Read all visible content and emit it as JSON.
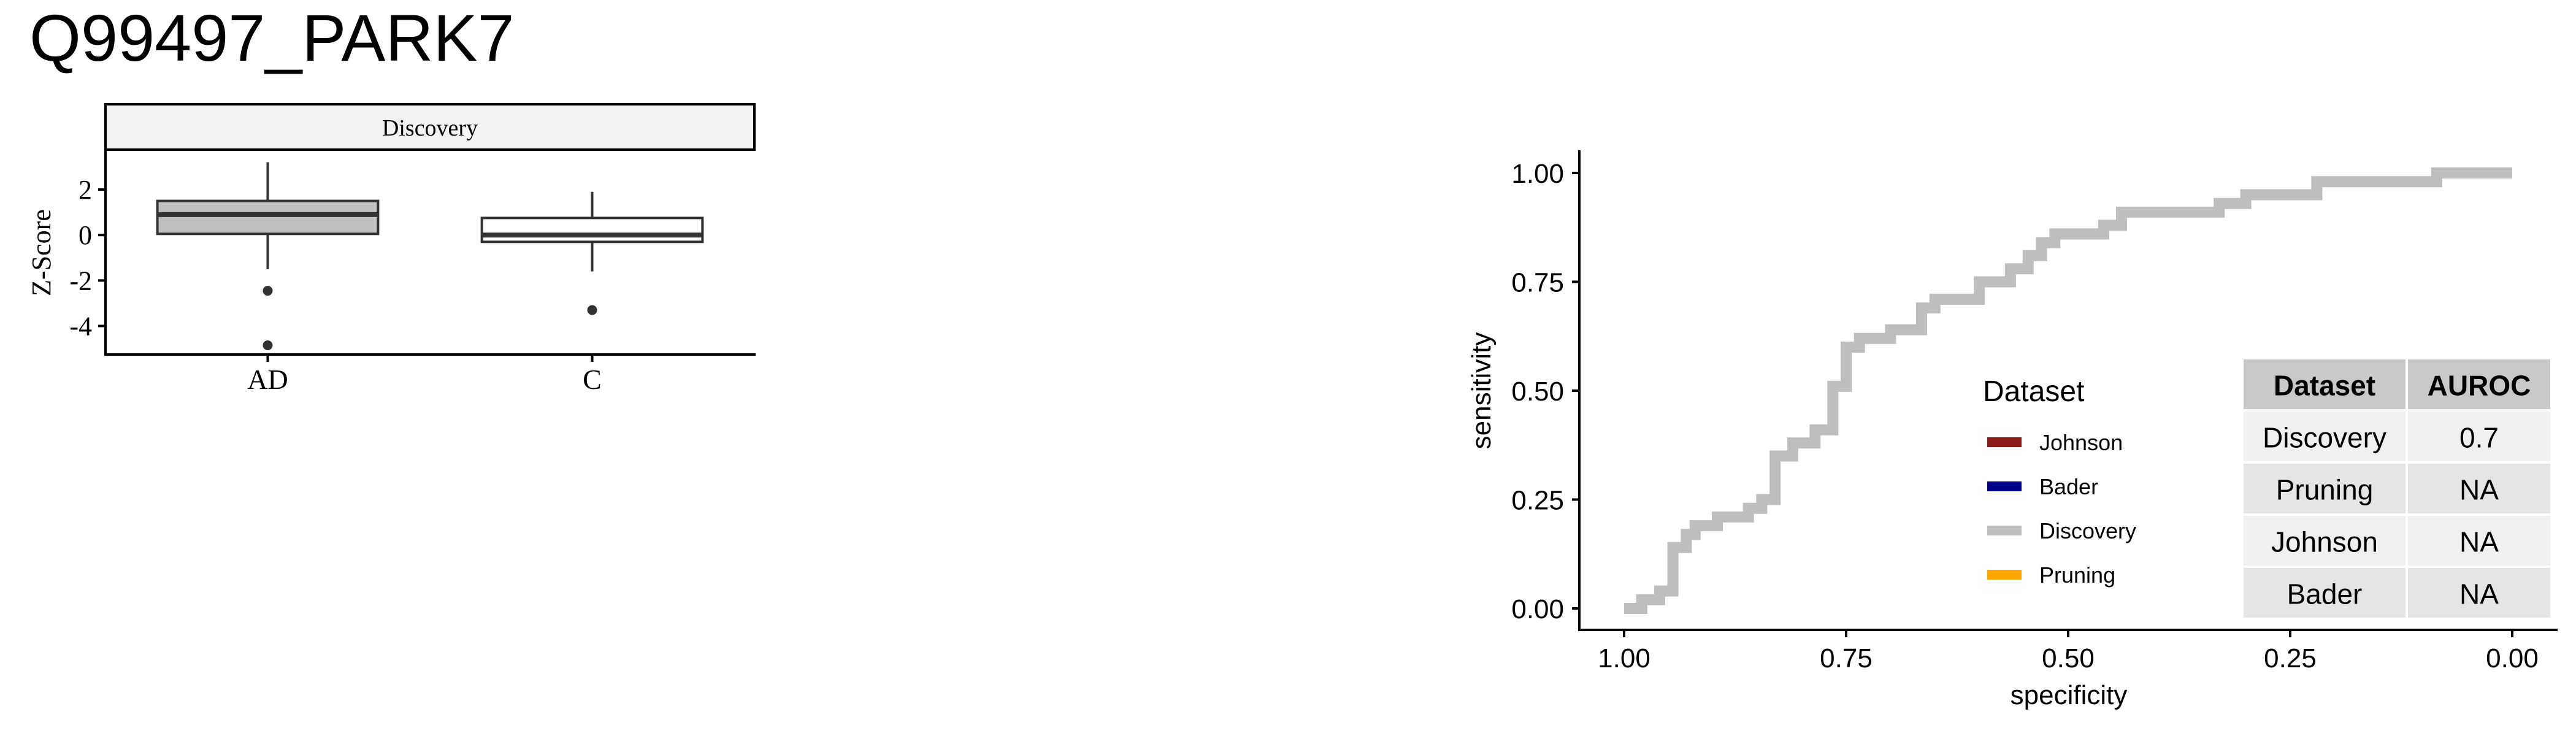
{
  "title": "Q99497_PARK7",
  "chart_data": [
    {
      "type": "box",
      "facet_label": "Discovery",
      "ylabel": "Z-Score",
      "xlabel": "",
      "categories": [
        "AD",
        "C"
      ],
      "ylim": [
        -5.2,
        3.7
      ],
      "yticks": [
        2,
        0,
        -2,
        -4
      ],
      "yticklabels": [
        "2",
        "0",
        "-2",
        "-4"
      ],
      "boxes": [
        {
          "category": "AD",
          "whisker_low": -1.5,
          "q1": 0.05,
          "median": 0.9,
          "q3": 1.5,
          "whisker_high": 3.2,
          "fill": "#c0c0c0",
          "outliers": [
            -2.45,
            -4.85
          ]
        },
        {
          "category": "C",
          "whisker_low": -1.6,
          "q1": -0.3,
          "median": 0.0,
          "q3": 0.75,
          "whisker_high": 1.9,
          "fill": "#ffffff",
          "outliers": [
            -3.3
          ]
        }
      ]
    },
    {
      "type": "line",
      "subtype": "roc_step",
      "xlabel": "specificity",
      "ylabel": "sensitivity",
      "x_reversed": true,
      "xlim": [
        1.0,
        0.0
      ],
      "ylim": [
        0.0,
        1.0
      ],
      "xticks": [
        1.0,
        0.75,
        0.5,
        0.25,
        0.0
      ],
      "xticklabels": [
        "1.00",
        "0.75",
        "0.50",
        "0.25",
        "0.00"
      ],
      "yticks": [
        0.0,
        0.25,
        0.5,
        0.75,
        1.0
      ],
      "yticklabels": [
        "0.00",
        "0.25",
        "0.50",
        "0.75",
        "1.00"
      ],
      "grid": false,
      "legend": {
        "title": "Dataset",
        "position": "bottom-right",
        "entries": [
          {
            "name": "Johnson",
            "color": "#8b1a1a"
          },
          {
            "name": "Bader",
            "color": "#00008b"
          },
          {
            "name": "Discovery",
            "color": "#bebebe"
          },
          {
            "name": "Pruning",
            "color": "#ffa500"
          }
        ]
      },
      "series": [
        {
          "name": "Discovery",
          "color": "#bebebe",
          "points": [
            [
              1.0,
              0.0
            ],
            [
              0.98,
              0.0
            ],
            [
              0.98,
              0.02
            ],
            [
              0.96,
              0.02
            ],
            [
              0.96,
              0.04
            ],
            [
              0.945,
              0.04
            ],
            [
              0.945,
              0.14
            ],
            [
              0.93,
              0.14
            ],
            [
              0.93,
              0.17
            ],
            [
              0.92,
              0.17
            ],
            [
              0.92,
              0.19
            ],
            [
              0.895,
              0.19
            ],
            [
              0.895,
              0.21
            ],
            [
              0.86,
              0.21
            ],
            [
              0.86,
              0.23
            ],
            [
              0.845,
              0.23
            ],
            [
              0.845,
              0.25
            ],
            [
              0.83,
              0.25
            ],
            [
              0.83,
              0.35
            ],
            [
              0.81,
              0.35
            ],
            [
              0.81,
              0.38
            ],
            [
              0.785,
              0.38
            ],
            [
              0.785,
              0.41
            ],
            [
              0.765,
              0.41
            ],
            [
              0.765,
              0.51
            ],
            [
              0.75,
              0.51
            ],
            [
              0.75,
              0.6
            ],
            [
              0.735,
              0.6
            ],
            [
              0.735,
              0.62
            ],
            [
              0.7,
              0.62
            ],
            [
              0.7,
              0.64
            ],
            [
              0.665,
              0.64
            ],
            [
              0.665,
              0.69
            ],
            [
              0.65,
              0.69
            ],
            [
              0.65,
              0.71
            ],
            [
              0.6,
              0.71
            ],
            [
              0.6,
              0.75
            ],
            [
              0.565,
              0.75
            ],
            [
              0.565,
              0.78
            ],
            [
              0.545,
              0.78
            ],
            [
              0.545,
              0.81
            ],
            [
              0.53,
              0.81
            ],
            [
              0.53,
              0.84
            ],
            [
              0.515,
              0.84
            ],
            [
              0.515,
              0.86
            ],
            [
              0.46,
              0.86
            ],
            [
              0.46,
              0.88
            ],
            [
              0.44,
              0.88
            ],
            [
              0.44,
              0.91
            ],
            [
              0.33,
              0.91
            ],
            [
              0.33,
              0.93
            ],
            [
              0.3,
              0.93
            ],
            [
              0.3,
              0.95
            ],
            [
              0.22,
              0.95
            ],
            [
              0.22,
              0.98
            ],
            [
              0.085,
              0.98
            ],
            [
              0.085,
              1.0
            ],
            [
              0.0,
              1.0
            ]
          ]
        }
      ],
      "table": {
        "headers": [
          "Dataset",
          "AUROC"
        ],
        "rows": [
          [
            "Discovery",
            "0.7"
          ],
          [
            "Pruning",
            "NA"
          ],
          [
            "Johnson",
            "NA"
          ],
          [
            "Bader",
            "NA"
          ]
        ]
      }
    }
  ]
}
